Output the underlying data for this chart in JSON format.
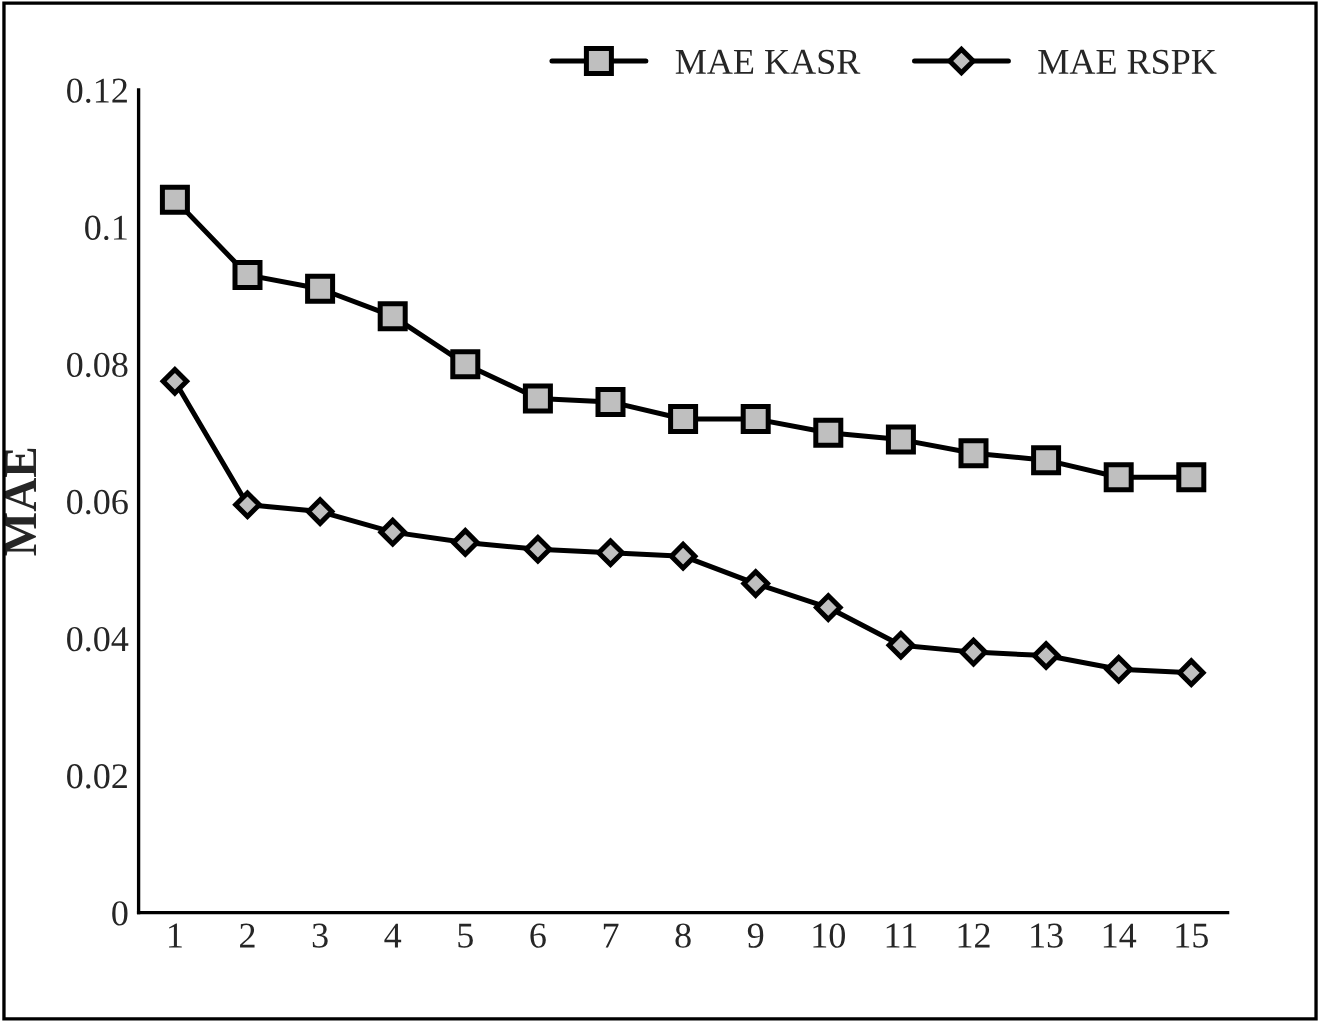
{
  "chart_data": {
    "type": "line",
    "ylabel": "MAE",
    "categories": [
      "1",
      "2",
      "3",
      "4",
      "5",
      "6",
      "7",
      "8",
      "9",
      "10",
      "11",
      "12",
      "13",
      "14",
      "15"
    ],
    "series": [
      {
        "name": "MAE KASR",
        "color": "#000000",
        "marker": "square",
        "values": [
          0.104,
          0.093,
          0.091,
          0.087,
          0.08,
          0.075,
          0.0745,
          0.072,
          0.072,
          0.07,
          0.069,
          0.067,
          0.066,
          0.0635,
          0.0635
        ]
      },
      {
        "name": "MAE RSPK",
        "color": "#000000",
        "marker": "diamond",
        "values": [
          0.0775,
          0.0595,
          0.0585,
          0.0555,
          0.054,
          0.053,
          0.0525,
          0.052,
          0.048,
          0.0445,
          0.039,
          0.038,
          0.0375,
          0.0355,
          0.035
        ]
      }
    ],
    "ylim": [
      0,
      0.12
    ],
    "yticks": [
      {
        "value": 0,
        "label": "0"
      },
      {
        "value": 0.02,
        "label": "0.02"
      },
      {
        "value": 0.04,
        "label": "0.04"
      },
      {
        "value": 0.06,
        "label": "0.06"
      },
      {
        "value": 0.08,
        "label": "0.08"
      },
      {
        "value": 0.1,
        "label": "0.1"
      },
      {
        "value": 0.12,
        "label": "0.12"
      }
    ],
    "grid": false,
    "legend": "top right",
    "line_style": "solid"
  }
}
